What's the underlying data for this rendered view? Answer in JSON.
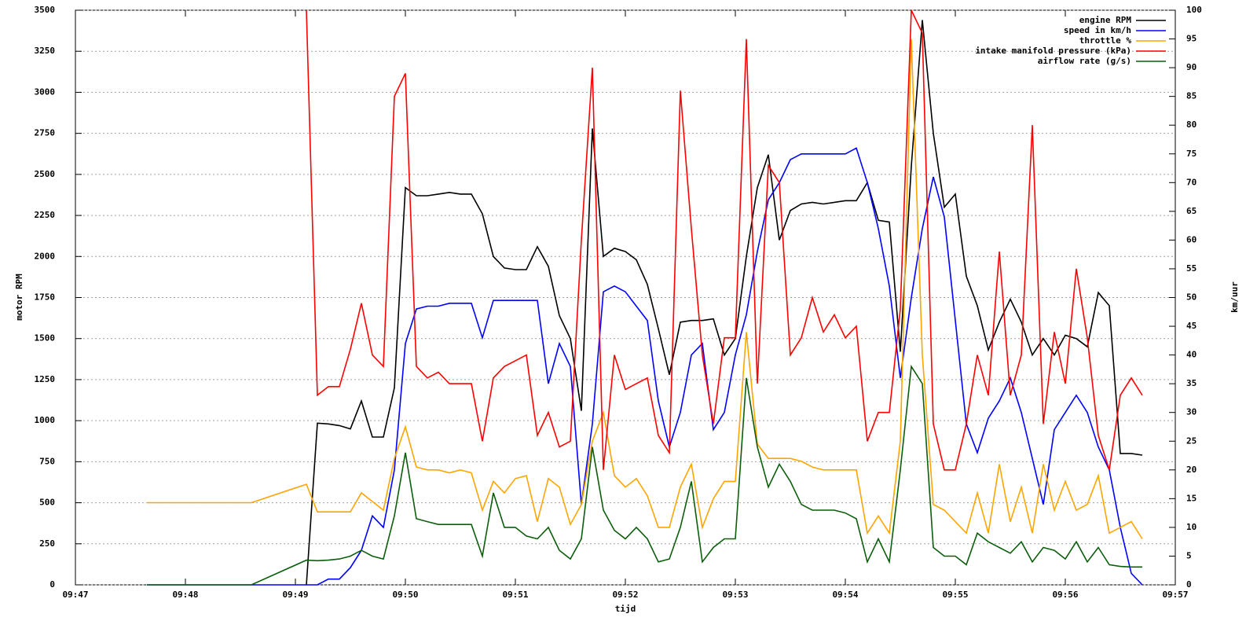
{
  "chart_data": {
    "type": "line",
    "xlabel": "tijd",
    "ylabel": "motor RPM",
    "y2label": "km/uur",
    "xlim": [
      587,
      597
    ],
    "xticks": [
      {
        "value": 587,
        "label": "09:47"
      },
      {
        "value": 588,
        "label": "09:48"
      },
      {
        "value": 589,
        "label": "09:49"
      },
      {
        "value": 590,
        "label": "09:50"
      },
      {
        "value": 591,
        "label": "09:51"
      },
      {
        "value": 592,
        "label": "09:52"
      },
      {
        "value": 593,
        "label": "09:53"
      },
      {
        "value": 594,
        "label": "09:54"
      },
      {
        "value": 595,
        "label": "09:55"
      },
      {
        "value": 596,
        "label": "09:56"
      },
      {
        "value": 597,
        "label": "09:57"
      }
    ],
    "ylim": [
      0,
      3500
    ],
    "yticks": [
      0,
      250,
      500,
      750,
      1000,
      1250,
      1500,
      1750,
      2000,
      2250,
      2500,
      2750,
      3000,
      3250,
      3500
    ],
    "y2lim": [
      0,
      100
    ],
    "y2ticks": [
      0,
      5,
      10,
      15,
      20,
      25,
      30,
      35,
      40,
      45,
      50,
      55,
      60,
      65,
      70,
      75,
      80,
      85,
      90,
      95,
      100
    ],
    "grid": true,
    "legend": "top-right",
    "x": [
      587.65,
      588.6,
      589.1,
      589.2,
      589.3,
      589.4,
      589.5,
      589.6,
      589.7,
      589.8,
      589.9,
      590.0,
      590.1,
      590.2,
      590.3,
      590.4,
      590.5,
      590.6,
      590.7,
      590.8,
      590.9,
      591.0,
      591.1,
      591.2,
      591.3,
      591.4,
      591.5,
      591.6,
      591.7,
      591.8,
      591.9,
      592.0,
      592.1,
      592.2,
      592.3,
      592.4,
      592.5,
      592.6,
      592.7,
      592.8,
      592.9,
      593.0,
      593.1,
      593.2,
      593.3,
      593.4,
      593.5,
      593.6,
      593.7,
      593.8,
      593.9,
      594.0,
      594.1,
      594.2,
      594.3,
      594.4,
      594.5,
      594.6,
      594.7,
      594.8,
      594.9,
      595.0,
      595.1,
      595.2,
      595.3,
      595.4,
      595.5,
      595.6,
      595.7,
      595.8,
      595.9,
      596.0,
      596.1,
      596.2,
      596.3,
      596.4,
      596.5,
      596.6,
      596.7
    ],
    "series": [
      {
        "name": "engine RPM",
        "color": "#000000",
        "axis": "y",
        "values": [
          null,
          null,
          0,
          985,
          980,
          970,
          950,
          1120,
          900,
          900,
          1200,
          2420,
          2370,
          2370,
          2380,
          2390,
          2380,
          2380,
          2260,
          2000,
          1930,
          1920,
          1920,
          2060,
          1940,
          1640,
          1500,
          1060,
          2780,
          2000,
          2050,
          2030,
          1980,
          1830,
          1560,
          1280,
          1600,
          1610,
          1610,
          1620,
          1400,
          1500,
          2000,
          2420,
          2620,
          2100,
          2280,
          2320,
          2330,
          2320,
          2330,
          2340,
          2340,
          2450,
          2220,
          2210,
          1420,
          2550,
          3440,
          2750,
          2300,
          2380,
          1880,
          1700,
          1430,
          1600,
          1740,
          1600,
          1400,
          1500,
          1400,
          1520,
          1500,
          1450,
          1780,
          1700,
          800,
          800,
          790
        ]
      },
      {
        "name": "speed in km/h",
        "color": "#0000ff",
        "axis": "y2",
        "values": [
          0,
          0,
          0,
          0,
          1,
          1,
          3,
          6,
          12,
          10,
          20,
          42,
          48,
          48.5,
          48.5,
          49,
          49,
          49,
          43,
          49.5,
          49.5,
          49.5,
          49.5,
          49.5,
          35,
          42,
          38,
          14,
          28,
          51,
          52,
          51,
          48.5,
          46,
          32,
          24,
          30,
          40,
          42,
          27,
          30,
          40,
          47,
          58,
          67,
          70,
          74,
          75,
          75,
          75,
          75,
          75,
          76,
          70,
          62,
          52,
          36,
          50,
          62,
          71,
          64,
          46,
          28,
          23,
          29,
          32,
          36,
          30,
          22,
          14,
          27,
          30,
          33,
          30,
          24,
          20,
          10,
          2,
          0
        ]
      },
      {
        "name": "throttle %",
        "color": "#ffa500",
        "axis": "y2",
        "values": [
          14.3,
          14.3,
          17.5,
          12.7,
          12.7,
          12.7,
          12.7,
          16,
          14.5,
          13,
          22,
          27.5,
          20.5,
          20,
          20,
          19.5,
          20,
          19.5,
          13,
          18,
          16,
          18.5,
          19,
          11,
          18.5,
          17,
          10.5,
          14,
          25,
          30,
          19,
          17,
          18.5,
          15.5,
          10,
          10,
          17,
          21,
          10,
          15,
          18,
          18,
          44,
          24.5,
          22,
          22,
          22,
          21.5,
          20.5,
          20,
          20,
          20,
          20,
          9,
          12,
          9,
          25,
          95,
          40,
          14,
          13,
          11,
          9,
          16,
          9,
          21,
          11,
          17,
          9,
          21,
          13,
          18,
          13,
          14,
          19,
          9,
          10,
          11,
          8
        ]
      },
      {
        "name": "intake manifold pressure (kPa)",
        "color": "#ff0000",
        "axis": "y2",
        "values": [
          null,
          null,
          100,
          33,
          34.5,
          34.5,
          41,
          49,
          40,
          38,
          85,
          89,
          38,
          36,
          37,
          35,
          35,
          35,
          25,
          36,
          38,
          39,
          40,
          26,
          30,
          24,
          25,
          60,
          90,
          20,
          40,
          34,
          35,
          36,
          26,
          23,
          86,
          62,
          40,
          28,
          43,
          43,
          95,
          35,
          73,
          70,
          40,
          43,
          50,
          44,
          47,
          43,
          45,
          25,
          30,
          30,
          48,
          100,
          96,
          28,
          20,
          20,
          28,
          40,
          33,
          58,
          33,
          40,
          80,
          28,
          44,
          35,
          55,
          43,
          26,
          20,
          33,
          36,
          33
        ]
      },
      {
        "name": "airflow rate (g/s)",
        "color": "#0b5e0b",
        "axis": "y2",
        "values": [
          0,
          0,
          4.3,
          4.2,
          4.3,
          4.5,
          5,
          6,
          5,
          4.5,
          12,
          23,
          11.5,
          11,
          10.5,
          10.5,
          10.5,
          10.5,
          5,
          16,
          10,
          10,
          8.5,
          8,
          10,
          6,
          4.5,
          8,
          24,
          13,
          9.5,
          8,
          10,
          8,
          4,
          4.5,
          10,
          18,
          4,
          6.5,
          8,
          8,
          36,
          24,
          17,
          21,
          18,
          14,
          13,
          13,
          13,
          12.5,
          11.5,
          4,
          8,
          4,
          20,
          38,
          35,
          6.5,
          5,
          5,
          3.5,
          9,
          7.5,
          6.5,
          5.5,
          7.5,
          4,
          6.5,
          6,
          4.5,
          7.5,
          4,
          6.5,
          3.5,
          3.2,
          3.1,
          3.1
        ]
      }
    ]
  }
}
